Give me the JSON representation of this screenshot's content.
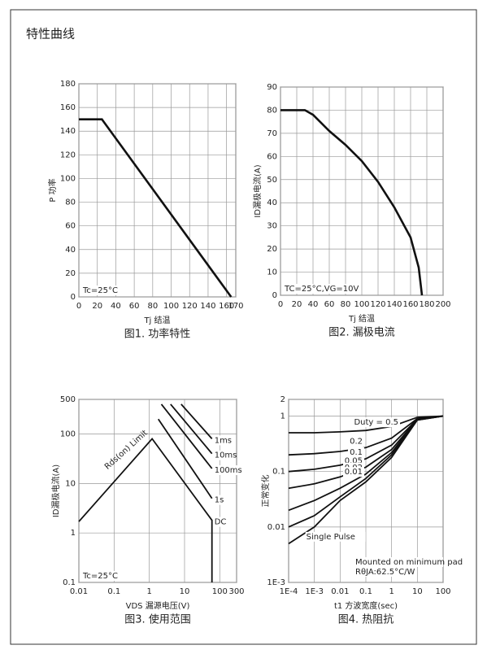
{
  "header": {
    "title": "特性曲线"
  },
  "chart_data": [
    {
      "type": "line",
      "caption": "图1. 功率特性",
      "xlabel": "Tj 结温",
      "ylabel": "P 功率",
      "x": [
        0,
        25,
        165
      ],
      "values": [
        150,
        150,
        0
      ],
      "color": "#111111",
      "xlim": [
        0,
        170
      ],
      "xticks": [
        0,
        20,
        40,
        60,
        80,
        100,
        120,
        140,
        160,
        170
      ],
      "ylim": [
        0,
        180
      ],
      "yticks": [
        0,
        20,
        40,
        60,
        80,
        100,
        120,
        140,
        160,
        180
      ],
      "grid": true,
      "annotations": [
        "Tc=25°C"
      ]
    },
    {
      "type": "line",
      "caption": "图2. 漏极电流",
      "xlabel": "Tj 结温",
      "ylabel": "ID漏极电流(A)",
      "x": [
        0,
        30,
        40,
        60,
        80,
        100,
        120,
        140,
        160,
        170,
        174
      ],
      "values": [
        80,
        80,
        78,
        71,
        65,
        58,
        49,
        38,
        25,
        12,
        0
      ],
      "color": "#111111",
      "xlim": [
        0,
        200
      ],
      "xticks": [
        0,
        20,
        40,
        60,
        80,
        100,
        120,
        140,
        160,
        180,
        200
      ],
      "ylim": [
        0,
        90
      ],
      "yticks": [
        0,
        10,
        20,
        30,
        40,
        50,
        60,
        70,
        80,
        90
      ],
      "grid": true,
      "annotations": [
        "TC=25°C,VG=10V"
      ]
    },
    {
      "type": "line",
      "caption": "图3. 使用范围",
      "xlabel": "VDS 漏源电压(V)",
      "ylabel": "ID漏极电流(A)",
      "xlog": true,
      "ylog": true,
      "grid": true,
      "xlim": [
        0.01,
        300
      ],
      "xticks": [
        0.01,
        0.1,
        1,
        10,
        100,
        300
      ],
      "ylim": [
        0.1,
        500
      ],
      "yticks": [
        0.1,
        1,
        10,
        100,
        500
      ],
      "series": [
        {
          "name": "1ms",
          "color": "#111111",
          "x": [
            8,
            60
          ],
          "values": [
            400,
            80
          ]
        },
        {
          "name": "10ms",
          "color": "#111111",
          "x": [
            4,
            60
          ],
          "values": [
            400,
            40
          ]
        },
        {
          "name": "100ms",
          "color": "#111111",
          "x": [
            2.2,
            60
          ],
          "values": [
            400,
            20
          ]
        },
        {
          "name": "1s",
          "color": "#111111",
          "x": [
            1.8,
            60
          ],
          "values": [
            200,
            5
          ]
        },
        {
          "name": "DC",
          "color": "#111111",
          "x": [
            0.01,
            1.2,
            60,
            60
          ],
          "values": [
            1.7,
            80,
            1.8,
            0.1
          ]
        }
      ],
      "annotations": [
        "Rds(on) Limit",
        "Tc=25°C"
      ]
    },
    {
      "type": "line",
      "caption": "图4. 热阻抗",
      "xlabel": "t1 方波宽度(sec)",
      "ylabel": "正常变化",
      "xlog": true,
      "ylog": true,
      "grid": true,
      "xlim": [
        0.0001,
        100
      ],
      "xticks": [
        {
          "value": 0.0001,
          "label": "1E-4"
        },
        {
          "value": 0.001,
          "label": "1E-3"
        },
        0.01,
        0.1,
        1,
        10,
        100
      ],
      "ylim": [
        0.001,
        2
      ],
      "yticks": [
        {
          "value": 0.001,
          "label": "1E-3"
        },
        0.01,
        0.1,
        1,
        2
      ],
      "x": [
        0.0001,
        0.001,
        0.01,
        0.1,
        1,
        10,
        100
      ],
      "series": [
        {
          "name": "Duty = 0.5",
          "color": "#111111",
          "values": [
            0.5,
            0.5,
            0.52,
            0.55,
            0.65,
            0.95,
            1
          ]
        },
        {
          "name": "0.2",
          "color": "#111111",
          "values": [
            0.2,
            0.21,
            0.23,
            0.27,
            0.4,
            0.9,
            1
          ]
        },
        {
          "name": "0.1",
          "color": "#111111",
          "values": [
            0.1,
            0.11,
            0.13,
            0.17,
            0.3,
            0.88,
            1
          ]
        },
        {
          "name": "0.05",
          "color": "#111111",
          "values": [
            0.05,
            0.06,
            0.08,
            0.12,
            0.25,
            0.87,
            1
          ]
        },
        {
          "name": "0.02",
          "color": "#111111",
          "values": [
            0.02,
            0.03,
            0.05,
            0.09,
            0.22,
            0.86,
            1
          ]
        },
        {
          "name": "0.01",
          "color": "#111111",
          "values": [
            0.01,
            0.016,
            0.035,
            0.075,
            0.2,
            0.85,
            1
          ]
        },
        {
          "name": "Single Pulse",
          "color": "#111111",
          "values": [
            0.005,
            0.01,
            0.03,
            0.065,
            0.18,
            0.85,
            1
          ]
        }
      ],
      "annotations": [
        "Mounted on minimum pad",
        "RθJA:62.5°C/W"
      ]
    }
  ]
}
